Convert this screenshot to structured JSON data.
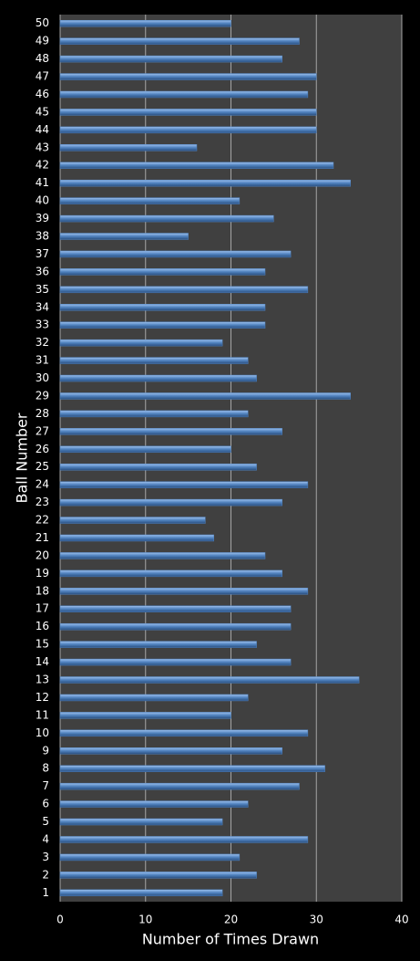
{
  "chart_data": {
    "type": "hbar",
    "x_label": "Number of Times Drawn",
    "y_label": "Ball Number",
    "categories": [
      "1",
      "2",
      "3",
      "4",
      "5",
      "6",
      "7",
      "8",
      "9",
      "10",
      "11",
      "12",
      "13",
      "14",
      "15",
      "16",
      "17",
      "18",
      "19",
      "20",
      "21",
      "22",
      "23",
      "24",
      "25",
      "26",
      "27",
      "28",
      "29",
      "30",
      "31",
      "32",
      "33",
      "34",
      "35",
      "36",
      "37",
      "38",
      "39",
      "40",
      "41",
      "42",
      "43",
      "44",
      "45",
      "46",
      "47",
      "48",
      "49",
      "50"
    ],
    "values": [
      19,
      23,
      21,
      29,
      19,
      22,
      28,
      31,
      26,
      29,
      20,
      22,
      35,
      27,
      23,
      27,
      27,
      29,
      26,
      24,
      18,
      17,
      26,
      29,
      23,
      20,
      26,
      22,
      34,
      23,
      22,
      19,
      24,
      24,
      29,
      24,
      27,
      15,
      25,
      21,
      34,
      32,
      16,
      30,
      30,
      29,
      30,
      26,
      28,
      20
    ],
    "color": "#4f81bd",
    "xlim": [
      0,
      40
    ],
    "xticks": [
      0,
      10,
      20,
      30,
      40
    ],
    "grid": true
  }
}
